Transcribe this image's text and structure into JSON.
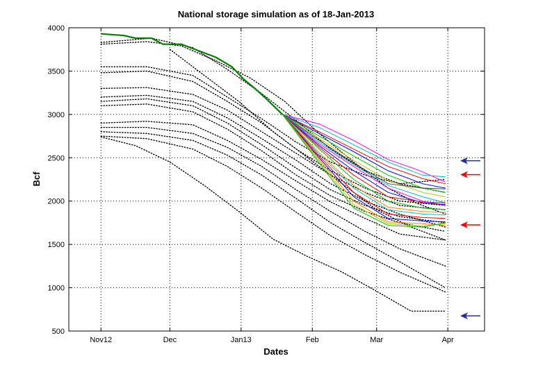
{
  "chart_data": {
    "type": "line",
    "title": "National storage simulation as of 18-Jan-2013",
    "xlabel": "Dates",
    "ylabel": "Bcf",
    "x_ticks": [
      "Nov12",
      "Dec",
      "Jan13",
      "Feb",
      "Mar",
      "Apr"
    ],
    "x_tick_days": [
      0,
      30,
      61,
      92,
      120,
      151
    ],
    "ylim": [
      500,
      4000
    ],
    "y_ticks": [
      500,
      1000,
      1500,
      2000,
      2500,
      3000,
      3500,
      4000
    ],
    "xlim_days": [
      -14,
      167
    ],
    "grid": true,
    "historical_years": [
      {
        "values": [
          [
            0,
            3810
          ],
          [
            20,
            3840
          ],
          [
            35,
            3790
          ],
          [
            50,
            3620
          ],
          [
            65,
            3420
          ],
          [
            80,
            3150
          ],
          [
            95,
            2780
          ],
          [
            110,
            2450
          ],
          [
            125,
            2150
          ],
          [
            137,
            1980
          ],
          [
            150,
            1850
          ]
        ]
      },
      {
        "values": [
          [
            0,
            3830
          ],
          [
            22,
            3880
          ],
          [
            40,
            3770
          ],
          [
            55,
            3520
          ],
          [
            70,
            3240
          ],
          [
            85,
            2930
          ],
          [
            100,
            2600
          ],
          [
            115,
            2350
          ],
          [
            130,
            2200
          ],
          [
            150,
            2250
          ]
        ]
      },
      {
        "values": [
          [
            0,
            3550
          ],
          [
            20,
            3550
          ],
          [
            40,
            3450
          ],
          [
            55,
            3200
          ],
          [
            70,
            2950
          ],
          [
            85,
            2680
          ],
          [
            100,
            2450
          ],
          [
            115,
            2300
          ],
          [
            130,
            2200
          ],
          [
            150,
            2100
          ]
        ]
      },
      {
        "values": [
          [
            0,
            3480
          ],
          [
            20,
            3500
          ],
          [
            40,
            3380
          ],
          [
            55,
            3150
          ],
          [
            70,
            2900
          ],
          [
            85,
            2600
          ],
          [
            100,
            2350
          ],
          [
            115,
            2150
          ],
          [
            130,
            2000
          ],
          [
            150,
            1950
          ]
        ]
      },
      {
        "values": [
          [
            0,
            3300
          ],
          [
            20,
            3310
          ],
          [
            40,
            3230
          ],
          [
            55,
            3050
          ],
          [
            70,
            2800
          ],
          [
            85,
            2550
          ],
          [
            100,
            2300
          ],
          [
            115,
            2100
          ],
          [
            130,
            1950
          ],
          [
            150,
            1900
          ]
        ]
      },
      {
        "values": [
          [
            0,
            3200
          ],
          [
            20,
            3220
          ],
          [
            40,
            3150
          ],
          [
            55,
            2960
          ],
          [
            70,
            2720
          ],
          [
            85,
            2470
          ],
          [
            100,
            2200
          ],
          [
            115,
            2000
          ],
          [
            130,
            1850
          ],
          [
            150,
            1700
          ]
        ]
      },
      {
        "values": [
          [
            0,
            3150
          ],
          [
            20,
            3180
          ],
          [
            40,
            3100
          ],
          [
            55,
            2900
          ],
          [
            70,
            2650
          ],
          [
            85,
            2380
          ],
          [
            100,
            2130
          ],
          [
            115,
            1950
          ],
          [
            130,
            1820
          ],
          [
            150,
            1750
          ]
        ]
      },
      {
        "values": [
          [
            0,
            3100
          ],
          [
            20,
            3120
          ],
          [
            40,
            3030
          ],
          [
            55,
            2830
          ],
          [
            70,
            2580
          ],
          [
            85,
            2300
          ],
          [
            100,
            2060
          ],
          [
            115,
            1880
          ],
          [
            130,
            1750
          ],
          [
            150,
            1650
          ]
        ]
      },
      {
        "values": [
          [
            0,
            2900
          ],
          [
            20,
            2920
          ],
          [
            40,
            2880
          ],
          [
            55,
            2700
          ],
          [
            70,
            2480
          ],
          [
            85,
            2230
          ],
          [
            100,
            1990
          ],
          [
            115,
            1800
          ],
          [
            130,
            1620
          ],
          [
            150,
            1550
          ]
        ]
      },
      {
        "values": [
          [
            0,
            2850
          ],
          [
            20,
            2850
          ],
          [
            40,
            2780
          ],
          [
            55,
            2620
          ],
          [
            70,
            2400
          ],
          [
            85,
            2130
          ],
          [
            100,
            1880
          ],
          [
            115,
            1650
          ],
          [
            130,
            1450
          ],
          [
            150,
            1250
          ]
        ]
      },
      {
        "values": [
          [
            0,
            2800
          ],
          [
            20,
            2780
          ],
          [
            40,
            2700
          ],
          [
            55,
            2530
          ],
          [
            70,
            2300
          ],
          [
            85,
            2030
          ],
          [
            100,
            1750
          ],
          [
            115,
            1520
          ],
          [
            130,
            1300
          ],
          [
            150,
            1000
          ]
        ]
      },
      {
        "values": [
          [
            0,
            2750
          ],
          [
            20,
            2720
          ],
          [
            40,
            2600
          ],
          [
            55,
            2400
          ],
          [
            70,
            2150
          ],
          [
            85,
            1870
          ],
          [
            100,
            1600
          ],
          [
            115,
            1380
          ],
          [
            130,
            1180
          ],
          [
            150,
            950
          ]
        ]
      },
      {
        "values": [
          [
            0,
            2740
          ],
          [
            15,
            2640
          ],
          [
            30,
            2450
          ],
          [
            45,
            2180
          ],
          [
            60,
            1880
          ],
          [
            75,
            1560
          ],
          [
            90,
            1360
          ],
          [
            105,
            1180
          ],
          [
            120,
            960
          ],
          [
            135,
            730
          ],
          [
            150,
            730
          ]
        ]
      },
      {
        "values": [
          [
            30,
            3750
          ],
          [
            45,
            3450
          ],
          [
            60,
            3150
          ],
          [
            75,
            2800
          ],
          [
            90,
            2500
          ],
          [
            105,
            2200
          ],
          [
            120,
            1900
          ],
          [
            135,
            1700
          ],
          [
            150,
            1550
          ]
        ]
      }
    ],
    "actual_path": {
      "color": "#007f00",
      "values": [
        [
          0,
          3930
        ],
        [
          10,
          3910
        ],
        [
          15,
          3880
        ],
        [
          22,
          3880
        ],
        [
          27,
          3810
        ],
        [
          35,
          3810
        ],
        [
          42,
          3740
        ],
        [
          50,
          3660
        ],
        [
          57,
          3550
        ],
        [
          62,
          3410
        ],
        [
          67,
          3300
        ],
        [
          72,
          3180
        ],
        [
          79,
          3000
        ]
      ]
    },
    "simulation_start": [
      79,
      3000
    ],
    "simulations": [
      {
        "color": "#ff00ff",
        "values": [
          [
            79,
            3000
          ],
          [
            95,
            2890
          ],
          [
            110,
            2700
          ],
          [
            125,
            2480
          ],
          [
            138,
            2360
          ],
          [
            150,
            2220
          ]
        ]
      },
      {
        "color": "#00bfbf",
        "values": [
          [
            79,
            3000
          ],
          [
            95,
            2850
          ],
          [
            110,
            2650
          ],
          [
            125,
            2450
          ],
          [
            140,
            2300
          ],
          [
            150,
            2280
          ]
        ]
      },
      {
        "color": "#ff0000",
        "values": [
          [
            79,
            3000
          ],
          [
            95,
            2800
          ],
          [
            110,
            2600
          ],
          [
            125,
            2400
          ],
          [
            140,
            2260
          ],
          [
            150,
            2200
          ]
        ]
      },
      {
        "color": "#0000ff",
        "values": [
          [
            79,
            3000
          ],
          [
            95,
            2780
          ],
          [
            110,
            2570
          ],
          [
            125,
            2350
          ],
          [
            140,
            2200
          ],
          [
            150,
            2150
          ]
        ]
      },
      {
        "color": "#00bf00",
        "values": [
          [
            79,
            3000
          ],
          [
            95,
            2750
          ],
          [
            110,
            2520
          ],
          [
            125,
            2300
          ],
          [
            140,
            2150
          ],
          [
            150,
            2100
          ]
        ]
      },
      {
        "color": "#bfbf00",
        "values": [
          [
            79,
            3000
          ],
          [
            95,
            2720
          ],
          [
            110,
            2470
          ],
          [
            125,
            2240
          ],
          [
            140,
            2100
          ],
          [
            150,
            2050
          ]
        ]
      },
      {
        "color": "#404040",
        "values": [
          [
            79,
            3000
          ],
          [
            95,
            2700
          ],
          [
            110,
            2440
          ],
          [
            125,
            2200
          ],
          [
            140,
            2150
          ],
          [
            150,
            2140
          ]
        ]
      },
      {
        "color": "#00bfbf",
        "values": [
          [
            79,
            3000
          ],
          [
            95,
            2680
          ],
          [
            110,
            2420
          ],
          [
            125,
            2180
          ],
          [
            140,
            2050
          ],
          [
            150,
            1980
          ]
        ]
      },
      {
        "color": "#ff00ff",
        "values": [
          [
            79,
            3000
          ],
          [
            95,
            2660
          ],
          [
            110,
            2400
          ],
          [
            125,
            2150
          ],
          [
            140,
            2000
          ],
          [
            150,
            1950
          ]
        ]
      },
      {
        "color": "#0000ff",
        "values": [
          [
            79,
            3000
          ],
          [
            95,
            2640
          ],
          [
            110,
            2350
          ],
          [
            125,
            2100
          ],
          [
            140,
            1980
          ],
          [
            150,
            1960
          ]
        ]
      },
      {
        "color": "#ff0000",
        "values": [
          [
            79,
            3000
          ],
          [
            95,
            2620
          ],
          [
            110,
            2300
          ],
          [
            125,
            2050
          ],
          [
            140,
            1990
          ],
          [
            150,
            1980
          ]
        ]
      },
      {
        "color": "#00bf00",
        "values": [
          [
            79,
            3000
          ],
          [
            95,
            2600
          ],
          [
            110,
            2250
          ],
          [
            125,
            2000
          ],
          [
            140,
            1920
          ],
          [
            150,
            1900
          ]
        ]
      },
      {
        "color": "#ff8000",
        "values": [
          [
            79,
            3000
          ],
          [
            95,
            2560
          ],
          [
            110,
            2180
          ],
          [
            125,
            1930
          ],
          [
            140,
            1880
          ],
          [
            150,
            1870
          ]
        ]
      },
      {
        "color": "#00bfbf",
        "values": [
          [
            79,
            3000
          ],
          [
            95,
            2540
          ],
          [
            110,
            2150
          ],
          [
            125,
            1900
          ],
          [
            140,
            1850
          ],
          [
            150,
            1840
          ]
        ]
      },
      {
        "color": "#ff0000",
        "values": [
          [
            79,
            3000
          ],
          [
            95,
            2520
          ],
          [
            110,
            2100
          ],
          [
            125,
            1850
          ],
          [
            140,
            1810
          ],
          [
            150,
            1800
          ]
        ]
      },
      {
        "color": "#0000ff",
        "values": [
          [
            79,
            3000
          ],
          [
            95,
            2500
          ],
          [
            110,
            2050
          ],
          [
            125,
            1800
          ],
          [
            140,
            1770
          ],
          [
            150,
            1760
          ]
        ]
      },
      {
        "color": "#ff8000",
        "values": [
          [
            79,
            3000
          ],
          [
            95,
            2480
          ],
          [
            110,
            2000
          ],
          [
            125,
            1760
          ],
          [
            140,
            1740
          ],
          [
            150,
            1720
          ]
        ]
      },
      {
        "color": "#bfbf00",
        "values": [
          [
            79,
            3000
          ],
          [
            95,
            2460
          ],
          [
            110,
            1960
          ],
          [
            125,
            1740
          ],
          [
            140,
            1710
          ],
          [
            150,
            1740
          ]
        ]
      },
      {
        "color": "#00bf00",
        "values": [
          [
            79,
            3000
          ],
          [
            95,
            2440
          ],
          [
            110,
            1920
          ],
          [
            125,
            1720
          ],
          [
            140,
            1700
          ],
          [
            150,
            1750
          ]
        ]
      }
    ],
    "arrows": [
      {
        "value": 2465,
        "color": "#1f2f8f"
      },
      {
        "value": 2305,
        "color": "#ff0000"
      },
      {
        "value": 1725,
        "color": "#ff0000"
      },
      {
        "value": 675,
        "color": "#1f2f8f"
      }
    ]
  }
}
